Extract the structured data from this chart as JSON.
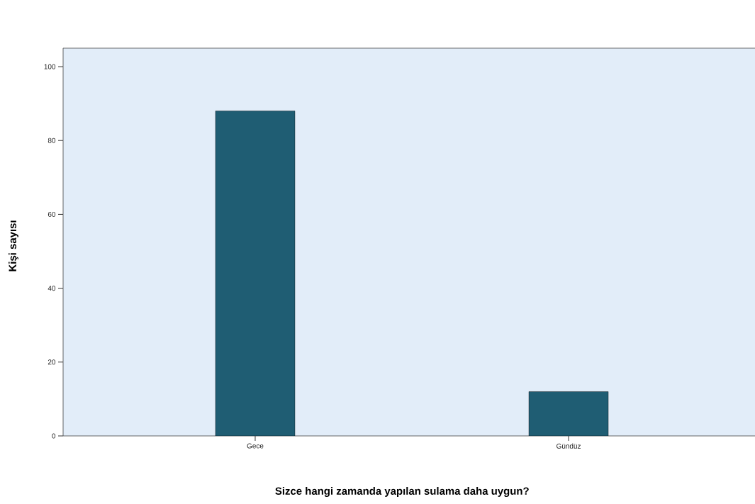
{
  "chart_data": {
    "type": "bar",
    "xlabel": "Sizce hangi zamanda yapılan sulama daha uygun?",
    "ylabel": "Kişi sayısı",
    "categories": [
      "Gece",
      "Gündüz"
    ],
    "values": [
      88,
      12
    ],
    "color": "#1f5d73",
    "ylim": [
      0,
      105
    ],
    "yticks": [
      0,
      20,
      40,
      60,
      80,
      100
    ],
    "grid": false
  }
}
